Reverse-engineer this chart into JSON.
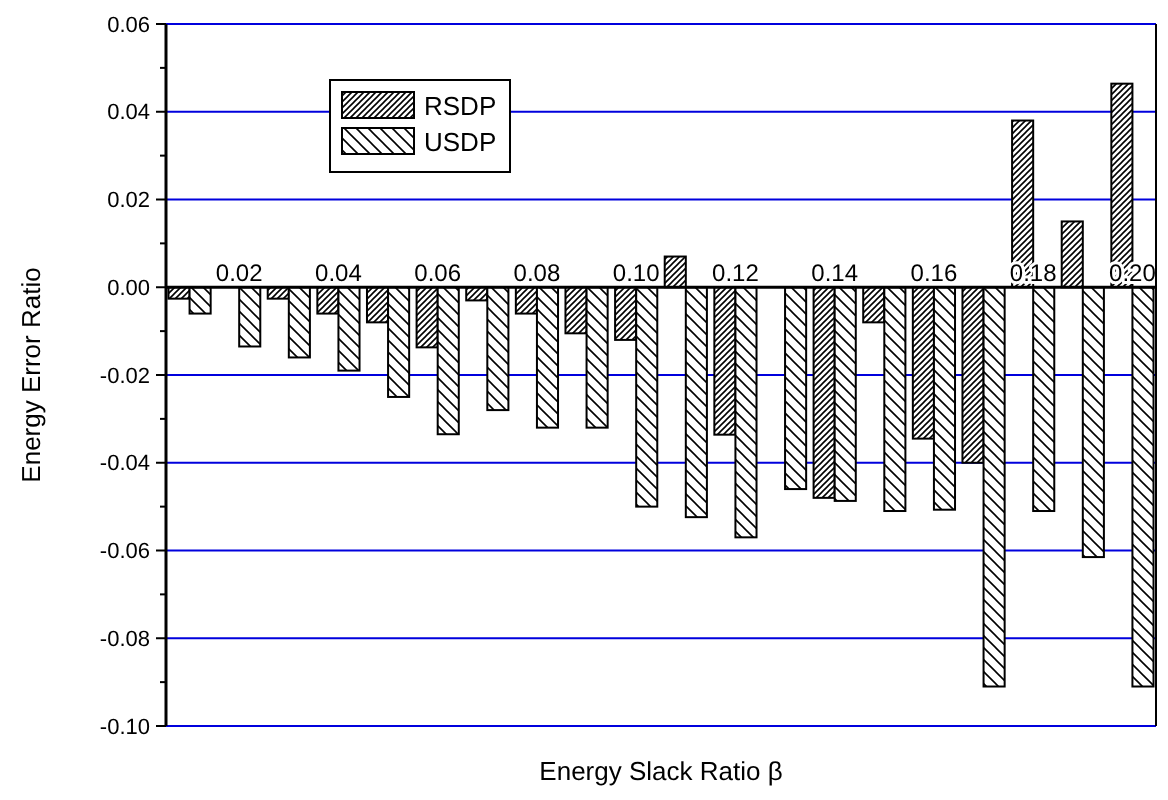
{
  "chart_data": {
    "type": "bar",
    "xlabel": "Energy Slack Ratio β",
    "ylabel": "Energy Error Ratio",
    "categories": [
      null,
      "0.02",
      null,
      "0.04",
      null,
      "0.06",
      null,
      "0.08",
      null,
      "0.10",
      null,
      "0.12",
      null,
      "0.14",
      null,
      "0.16",
      null,
      "0.18",
      null,
      "0.20"
    ],
    "series": [
      {
        "name": "RSDP",
        "color": "#000000",
        "values": [
          -0.0026,
          null,
          -0.0026,
          -0.006,
          -0.008,
          -0.0137,
          -0.003,
          -0.006,
          -0.0105,
          -0.012,
          0.007,
          -0.0336,
          null,
          -0.048,
          -0.008,
          -0.0345,
          -0.04,
          0.038,
          0.015,
          0.0464
        ]
      },
      {
        "name": "USDP",
        "color": "#000000",
        "values": [
          -0.006,
          -0.0135,
          -0.016,
          -0.019,
          -0.025,
          -0.0335,
          -0.028,
          -0.032,
          -0.032,
          -0.05,
          -0.0524,
          -0.057,
          -0.046,
          -0.0487,
          -0.051,
          -0.0507,
          -0.091,
          -0.051,
          -0.0615,
          -0.091
        ]
      }
    ],
    "ylim": [
      -0.1,
      0.06
    ],
    "yticks": [
      {
        "value": -0.1,
        "label": "-0.10"
      },
      {
        "value": -0.09,
        "label": null
      },
      -0.08,
      {
        "value": -0.07,
        "label": null
      },
      -0.06,
      {
        "value": -0.05,
        "label": null
      },
      -0.04,
      {
        "value": -0.03,
        "label": null
      },
      -0.02,
      {
        "value": -0.01,
        "label": null
      },
      {
        "value": 0,
        "label": "0.00"
      },
      {
        "value": 0.01,
        "label": null
      },
      0.02,
      {
        "value": 0.03,
        "label": null
      },
      0.04,
      {
        "value": 0.05,
        "label": null
      },
      0.06
    ],
    "grid": "y",
    "legend": "top left"
  }
}
